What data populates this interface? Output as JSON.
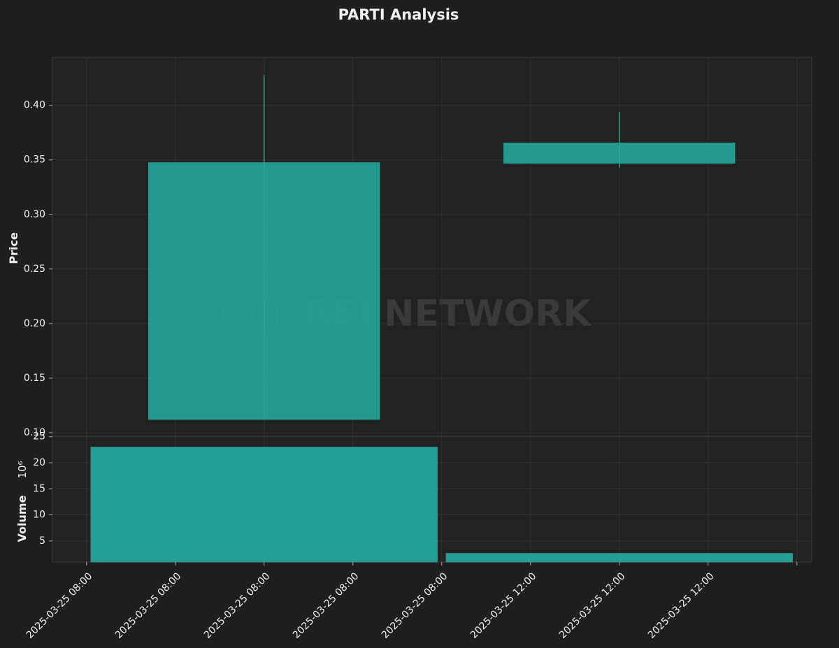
{
  "chart_data": [
    {
      "type": "candlestick",
      "title": "PARTI Analysis",
      "ylabel": "Price",
      "watermark": "REI NETWORK",
      "x": [
        "2025-03-25 08:00",
        "2025-03-25 12:00"
      ],
      "open": [
        0.1122,
        0.347
      ],
      "high": [
        0.428,
        0.394
      ],
      "low": [
        0.1122,
        0.343
      ],
      "close": [
        0.3474,
        0.3654
      ],
      "color": "#26a69a",
      "xlim": [
        "2025-03-25 05:37",
        "2025-03-25 14:10"
      ],
      "ylim": [
        0.0968,
        0.444
      ],
      "yticks": [
        {
          "value": 0.1,
          "label": "0.10"
        },
        {
          "value": 0.15,
          "label": "0.15"
        },
        {
          "value": 0.2,
          "label": "0.20"
        },
        {
          "value": 0.25,
          "label": "0.25"
        },
        {
          "value": 0.3,
          "label": "0.30"
        },
        {
          "value": 0.35,
          "label": "0.35"
        },
        {
          "value": 0.4,
          "label": "0.40"
        }
      ],
      "grid": true
    },
    {
      "type": "bar",
      "ylabel": "Volume",
      "scale_label": "10⁶",
      "x": [
        "2025-03-25 08:00",
        "2025-03-25 12:00"
      ],
      "values": [
        23.0,
        2.6
      ],
      "color": "#26a69a",
      "xlim": [
        "2025-03-25 05:37",
        "2025-03-25 14:10"
      ],
      "ylim": [
        0.95,
        25.1
      ],
      "yticks": [
        5,
        10,
        15,
        20,
        25
      ],
      "xticks": [
        {
          "value": "2025-03-25 06:00",
          "label": "2025-03-25 08:00"
        },
        {
          "value": "2025-03-25 07:00",
          "label": "2025-03-25 08:00"
        },
        {
          "value": "2025-03-25 08:00",
          "label": "2025-03-25 08:00"
        },
        {
          "value": "2025-03-25 09:00",
          "label": "2025-03-25 08:00"
        },
        {
          "value": "2025-03-25 10:00",
          "label": "2025-03-25 08:00"
        },
        {
          "value": "2025-03-25 11:00",
          "label": "2025-03-25 12:00"
        },
        {
          "value": "2025-03-25 12:00",
          "label": "2025-03-25 12:00"
        },
        {
          "value": "2025-03-25 13:00",
          "label": "2025-03-25 12:00"
        },
        {
          "value": "2025-03-25 14:00",
          "label": null
        }
      ],
      "grid": true
    }
  ]
}
